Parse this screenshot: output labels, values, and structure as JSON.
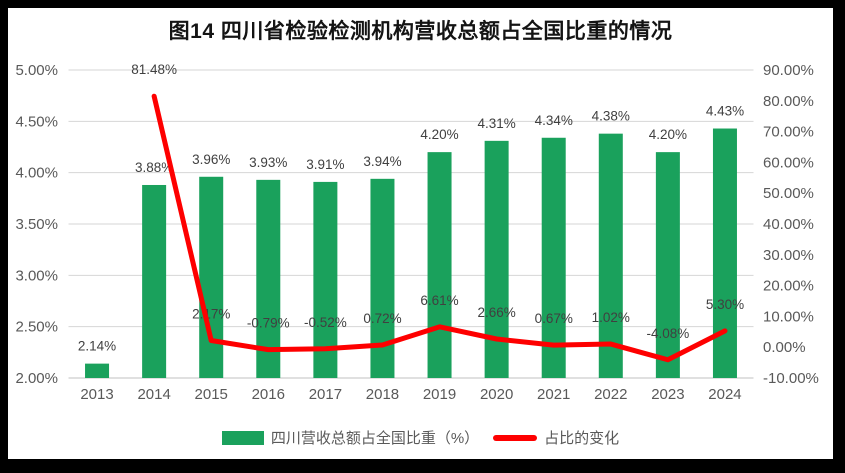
{
  "window": {
    "frame_color": "#000000",
    "canvas_color": "#ffffff"
  },
  "chart_data": {
    "type": "bar",
    "subtype": "combo-bar-line",
    "title": "图14  四川省检验检测机构营收总额占全国比重的情况",
    "categories": [
      "2013",
      "2014",
      "2015",
      "2016",
      "2017",
      "2018",
      "2019",
      "2020",
      "2021",
      "2022",
      "2023",
      "2024"
    ],
    "series": [
      {
        "name": "四川营收总额占全国比重（%）",
        "type": "bar",
        "axis": "left",
        "color": "#1AA15C",
        "values": [
          2.14,
          3.88,
          3.96,
          3.93,
          3.91,
          3.94,
          4.2,
          4.31,
          4.34,
          4.38,
          4.2,
          4.43
        ],
        "labels": [
          "2.14%",
          "3.88%",
          "3.96%",
          "3.93%",
          "3.91%",
          "3.94%",
          "4.20%",
          "4.31%",
          "4.34%",
          "4.38%",
          "4.20%",
          "4.43%"
        ]
      },
      {
        "name": "占比的变化",
        "type": "line",
        "axis": "right",
        "color": "#FE0000",
        "values": [
          null,
          81.48,
          2.17,
          -0.79,
          -0.52,
          0.72,
          6.61,
          2.66,
          0.67,
          1.02,
          -4.08,
          5.3
        ],
        "labels": [
          null,
          "81.48%",
          "2.17%",
          "-0.79%",
          "-0.52%",
          "0.72%",
          "6.61%",
          "2.66%",
          "0.67%",
          "1.02%",
          "-4.08%",
          "5.30%"
        ]
      }
    ],
    "left_axis": {
      "min": 2,
      "max": 5,
      "ticks": [
        "5.00%",
        "4.50%",
        "4.00%",
        "3.50%",
        "3.00%",
        "2.50%",
        "2.00%"
      ]
    },
    "right_axis": {
      "min": -10,
      "max": 90,
      "ticks": [
        "90.00%",
        "80.00%",
        "70.00%",
        "60.00%",
        "50.00%",
        "40.00%",
        "30.00%",
        "20.00%",
        "10.00%",
        "0.00%",
        "-10.00%"
      ]
    },
    "grid": true,
    "gridline_color": "#D6D6D6",
    "tick_label_color": "#595959",
    "data_label_color": "#404040",
    "legend_position": "bottom"
  }
}
